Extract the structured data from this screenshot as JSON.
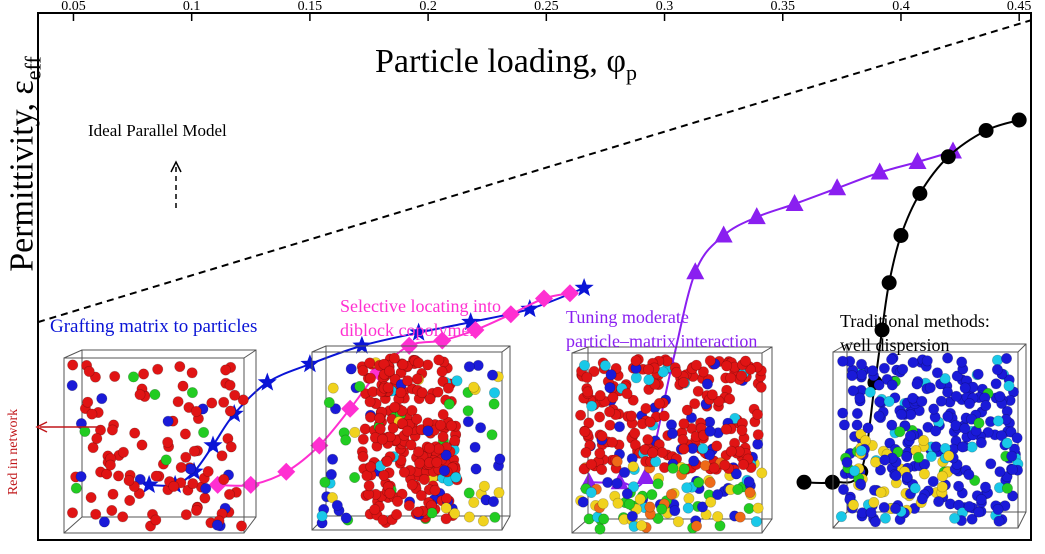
{
  "chart_data": {
    "type": "line",
    "xlabel": "Particle loading, φ",
    "xlabel_sub": "p",
    "ylabel": "Permittivity, ε",
    "ylabel_sub": "eff",
    "xlim": [
      0.035,
      0.455
    ],
    "x_ticks": [
      0.05,
      0.1,
      0.15,
      0.2,
      0.25,
      0.3,
      0.35,
      0.4,
      0.45
    ],
    "x_tick_labels": [
      "0.05",
      "0.1",
      "0.15",
      "0.2",
      "0.25",
      "0.3",
      "0.35",
      "0.4",
      "0.45"
    ],
    "grid": false,
    "reference_line": {
      "label": "Ideal Parallel Model",
      "style": "dashed",
      "color": "#000000",
      "x": [
        0.035,
        0.455
      ],
      "y": [
        0.415,
        0.99
      ]
    },
    "series": [
      {
        "marker": "star",
        "color": "#0a14d6",
        "x": [
          0.082,
          0.093,
          0.101,
          0.109,
          0.118,
          0.132,
          0.15,
          0.172,
          0.196,
          0.218,
          0.243,
          0.266
        ],
        "y": [
          0.105,
          0.105,
          0.13,
          0.18,
          0.24,
          0.3,
          0.335,
          0.37,
          0.395,
          0.415,
          0.44,
          0.48
        ]
      },
      {
        "marker": "diamond",
        "color": "#ff2fd1",
        "x": [
          0.111,
          0.125,
          0.14,
          0.154,
          0.167,
          0.179,
          0.192,
          0.206,
          0.22,
          0.235,
          0.249,
          0.26
        ],
        "y": [
          0.105,
          0.105,
          0.13,
          0.18,
          0.25,
          0.32,
          0.37,
          0.38,
          0.4,
          0.43,
          0.46,
          0.47
        ]
      },
      {
        "marker": "triangle",
        "color": "#8a1ff0",
        "x": [
          0.268,
          0.281,
          0.292,
          0.303,
          0.313,
          0.325,
          0.339,
          0.355,
          0.373,
          0.391,
          0.407,
          0.422
        ],
        "y": [
          0.11,
          0.11,
          0.12,
          0.33,
          0.51,
          0.58,
          0.615,
          0.64,
          0.67,
          0.7,
          0.72,
          0.74
        ]
      },
      {
        "marker": "circle",
        "color": "#000000",
        "x": [
          0.359,
          0.371,
          0.383,
          0.389,
          0.392,
          0.395,
          0.4,
          0.408,
          0.42,
          0.436,
          0.45
        ],
        "y": [
          0.11,
          0.11,
          0.13,
          0.3,
          0.4,
          0.49,
          0.58,
          0.66,
          0.73,
          0.78,
          0.8
        ]
      }
    ]
  },
  "annotations": {
    "grafting": "Grafting matrix to particles",
    "selective_1": "Selective locating into",
    "selective_2": "diblock copolymer",
    "tuning_1": "Tuning moderate",
    "tuning_2": "particle–matrix interaction",
    "traditional_1": "Traditional methods:",
    "traditional_2": "well dispersion",
    "red_in_network": "Red in network"
  },
  "colors": {
    "particle_red": "#e01414",
    "particle_blue": "#1a1ad8",
    "particle_green": "#22cc22",
    "particle_cyan": "#19c8e8",
    "particle_yellow": "#f0d21e",
    "particle_orange": "#ee6a18",
    "annotation_red": "#c0171a"
  },
  "images": [
    {
      "name": "simulation-box-grafting",
      "particle_colors": [
        "red",
        "blue",
        "green"
      ]
    },
    {
      "name": "simulation-box-selective",
      "particle_colors": [
        "red",
        "blue",
        "green",
        "cyan",
        "yellow"
      ]
    },
    {
      "name": "simulation-box-tuning",
      "particle_colors": [
        "red",
        "blue",
        "cyan",
        "green",
        "yellow",
        "orange"
      ]
    },
    {
      "name": "simulation-box-traditional",
      "particle_colors": [
        "blue",
        "cyan",
        "yellow",
        "green"
      ]
    }
  ]
}
